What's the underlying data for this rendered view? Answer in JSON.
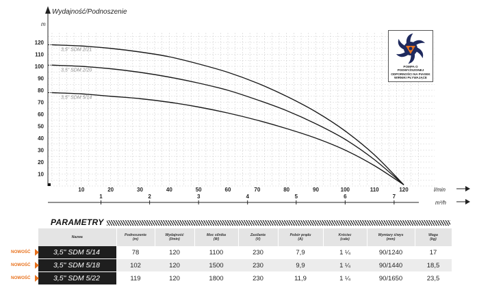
{
  "chart_data": {
    "type": "line",
    "title": "Wydajność/Podnoszenie",
    "ylabel": "m",
    "xlabel": "l/min",
    "x2label": "m³/h",
    "xlim": [
      0,
      130
    ],
    "ylim": [
      0,
      130
    ],
    "yticks": [
      10,
      20,
      30,
      40,
      50,
      60,
      70,
      80,
      90,
      100,
      110,
      120
    ],
    "xticks": [
      10,
      20,
      30,
      40,
      50,
      60,
      70,
      80,
      90,
      100,
      110,
      120
    ],
    "x2ticks": [
      {
        "label": "1",
        "at_lmin": 16.7
      },
      {
        "label": "2",
        "at_lmin": 33.3
      },
      {
        "label": "3",
        "at_lmin": 50
      },
      {
        "label": "4",
        "at_lmin": 66.7
      },
      {
        "label": "5",
        "at_lmin": 83.3
      },
      {
        "label": "6",
        "at_lmin": 100
      },
      {
        "label": "7",
        "at_lmin": 116.7
      }
    ],
    "series": [
      {
        "name": "3,5\" SDM 2/21",
        "x": [
          0,
          10,
          20,
          30,
          40,
          50,
          60,
          70,
          80,
          90,
          100,
          110,
          120
        ],
        "y": [
          118,
          117,
          115,
          112,
          108,
          102,
          95,
          86,
          75,
          62,
          46,
          26,
          1
        ]
      },
      {
        "name": "3,5\" SDM 2/20",
        "x": [
          0,
          10,
          20,
          30,
          40,
          50,
          60,
          70,
          80,
          90,
          100,
          110,
          120
        ],
        "y": [
          101,
          100,
          98,
          95,
          91,
          86,
          80,
          72,
          63,
          52,
          39,
          22,
          1
        ]
      },
      {
        "name": "3,5\" SDM 5/14",
        "x": [
          0,
          10,
          20,
          30,
          40,
          50,
          60,
          70,
          80,
          90,
          100,
          110,
          120
        ],
        "y": [
          78,
          77,
          75,
          73,
          70,
          66,
          61,
          55,
          48,
          40,
          30,
          17,
          1
        ]
      }
    ],
    "grid": true
  },
  "logo": {
    "caption": "POMPA O PODWYŻSZONEJ ODPORNOŚCI NA PIASEK WIRNIKI PŁYWAJĄCE",
    "colors": {
      "blade": "#1f2a5e",
      "core": "#e8711c"
    }
  },
  "parametry": {
    "title": "PARAMETRY",
    "columns": [
      {
        "label": "Nazwa",
        "unit": ""
      },
      {
        "label": "Podnoszenie",
        "unit": "(m)"
      },
      {
        "label": "Wydajność",
        "unit": "(l/min)"
      },
      {
        "label": "Moc silnika",
        "unit": "(W)"
      },
      {
        "label": "Zasilanie",
        "unit": "(V)"
      },
      {
        "label": "Pobór prądu",
        "unit": "(A)"
      },
      {
        "label": "Króciec",
        "unit": "(cale)"
      },
      {
        "label": "Wymiary ś/wys",
        "unit": "(mm)"
      },
      {
        "label": "Waga",
        "unit": "(kg)"
      }
    ],
    "rows": [
      {
        "badge": "NOWOŚĆ",
        "name": "3,5\" SDM 5/14",
        "head": "78",
        "flow": "120",
        "power": "1100",
        "voltage": "230",
        "current": "7,9",
        "outlet": "1 ¼",
        "dims": "90/1240",
        "weight": "17"
      },
      {
        "badge": "NOWOŚĆ",
        "name": "3,5\" SDM 5/18",
        "head": "102",
        "flow": "120",
        "power": "1500",
        "voltage": "230",
        "current": "9,9",
        "outlet": "1 ¼",
        "dims": "90/1440",
        "weight": "18,5"
      },
      {
        "badge": "NOWOŚĆ",
        "name": "3,5\" SDM 5/22",
        "head": "119",
        "flow": "120",
        "power": "1800",
        "voltage": "230",
        "current": "11,9",
        "outlet": "1 ¼",
        "dims": "90/1650",
        "weight": "23,5"
      }
    ]
  }
}
